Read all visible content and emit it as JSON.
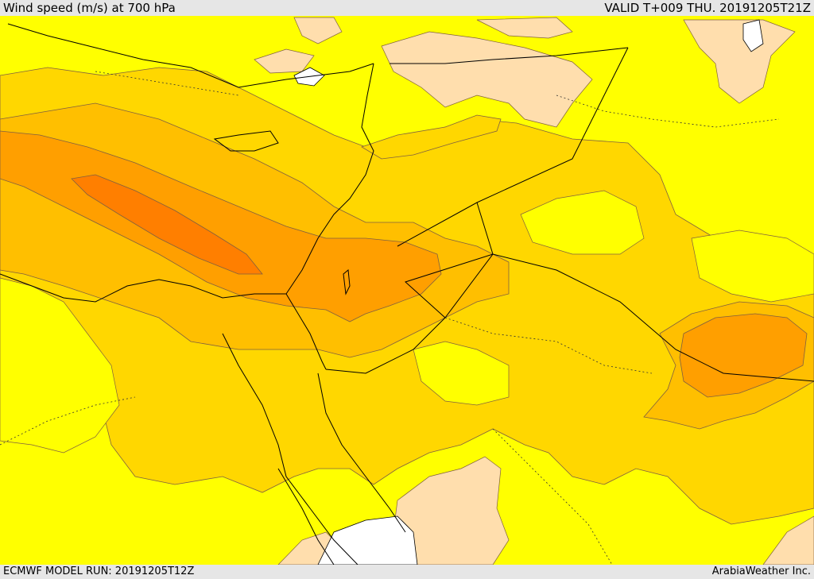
{
  "header": {
    "title": "Wind speed (m/s) at 700 hPa",
    "valid": "VALID T+009 THU. 20191205T21Z"
  },
  "footer": {
    "model_run": "ECMWF MODEL RUN: 20191205T12Z",
    "credit": "ArabiaWeather Inc."
  },
  "colors": {
    "no_data": "#ffffff",
    "calm": "#ffdead",
    "band_1": "#ffff00",
    "band_2": "#ffd700",
    "band_3": "#ffbf00",
    "band_4": "#ff9f00",
    "band_5": "#ff7f00",
    "coastline": "#000000",
    "contour": "#806040"
  }
}
